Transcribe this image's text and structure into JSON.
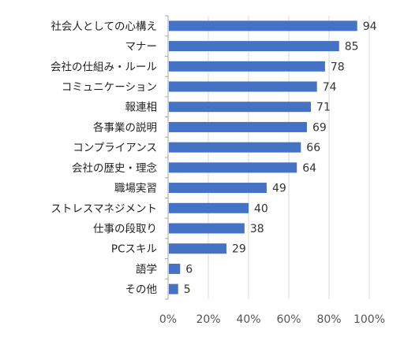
{
  "chart_data": {
    "type": "bar",
    "orientation": "horizontal",
    "categories": [
      "社会人としての心構え",
      "マナー",
      "会社の仕組み・ルール",
      "コミュニケーション",
      "報連相",
      "各事業の説明",
      "コンプライアンス",
      "会社の歴史・理念",
      "職場実習",
      "ストレスマネジメント",
      "仕事の段取り",
      "PCスキル",
      "語学",
      "その他"
    ],
    "values": [
      94,
      85,
      78,
      74,
      71,
      69,
      66,
      64,
      49,
      40,
      38,
      29,
      6,
      5
    ],
    "data_labels": [
      "94",
      "85",
      "78",
      "74",
      "71",
      "69",
      "66",
      "64",
      "49",
      "40",
      "38",
      "29",
      "6",
      "5"
    ],
    "xlim": [
      0,
      100
    ],
    "x_ticks": [
      0,
      20,
      40,
      60,
      80,
      100
    ],
    "x_tick_labels": [
      "0%",
      "20%",
      "40%",
      "60%",
      "80%",
      "100%"
    ],
    "title": "",
    "xlabel": "",
    "ylabel": "",
    "grid": true,
    "legend": false,
    "colors": {
      "bar": "#4472C4",
      "grid": "#D9D9D9",
      "axis": "#A6A6A6"
    }
  }
}
